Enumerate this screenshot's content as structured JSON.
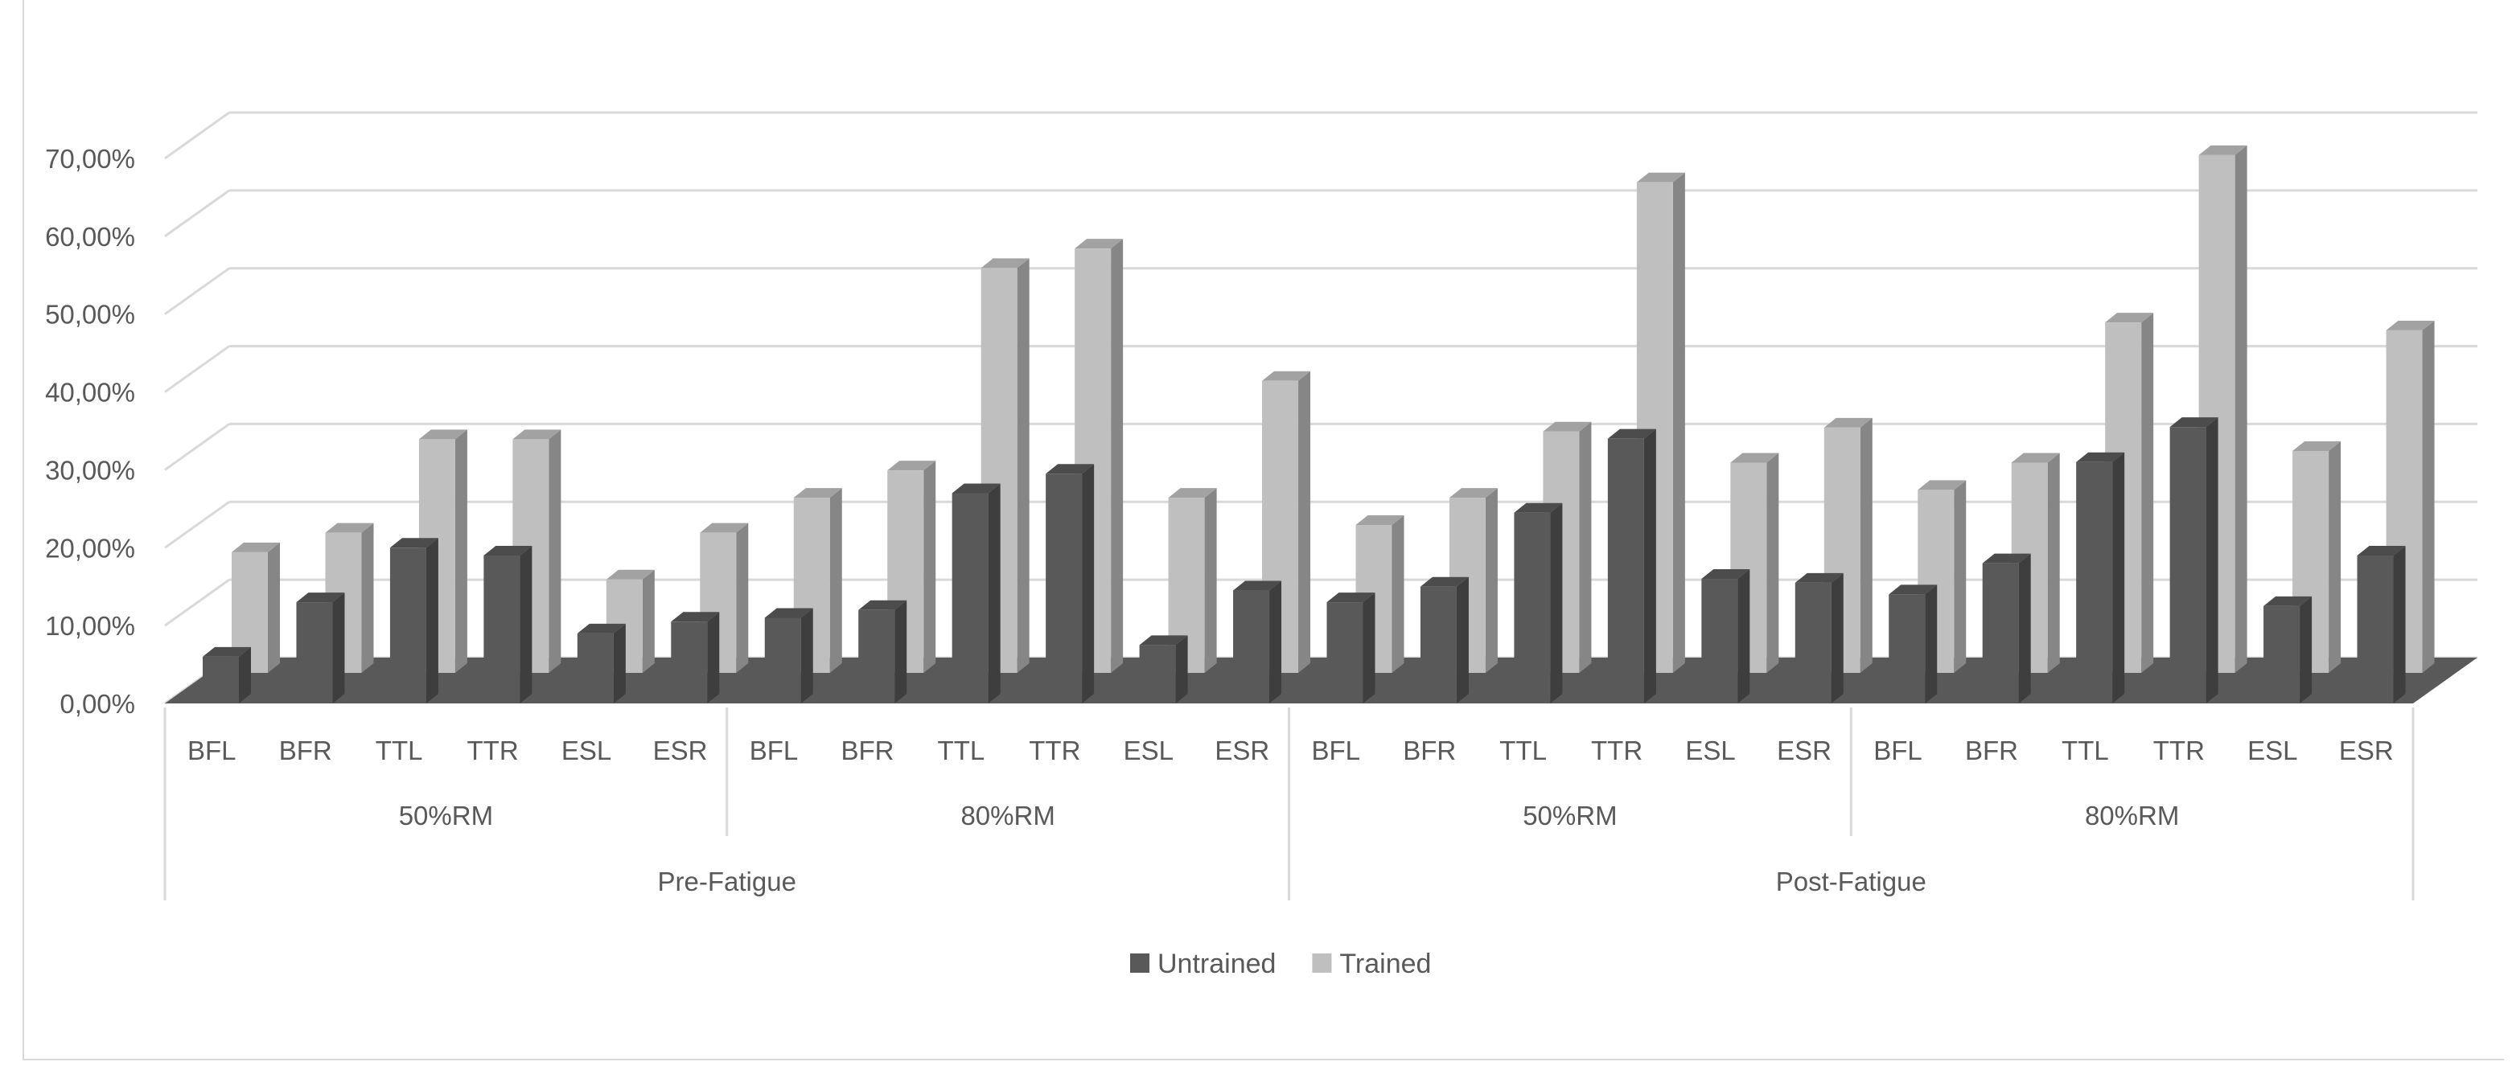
{
  "chart_data": {
    "type": "bar",
    "title": "",
    "xlabel": "",
    "ylabel": "",
    "ylim": [
      0,
      0.7
    ],
    "y_ticks": [
      "0,00%",
      "10,00%",
      "20,00%",
      "30,00%",
      "40,00%",
      "50,00%",
      "60,00%",
      "70,00%"
    ],
    "grid": true,
    "legend_position": "bottom",
    "categories": [
      "BFL",
      "BFR",
      "TTL",
      "TTR",
      "ESL",
      "ESR",
      "BFL",
      "BFR",
      "TTL",
      "TTR",
      "ESL",
      "ESR",
      "BFL",
      "BFR",
      "TTL",
      "TTR",
      "ESL",
      "ESR",
      "BFL",
      "BFR",
      "TTL",
      "TTR",
      "ESL",
      "ESR"
    ],
    "groups": [
      {
        "label": "Pre-Fatigue",
        "subgroups": [
          "50%RM",
          "80%RM"
        ]
      },
      {
        "label": "Post-Fatigue",
        "subgroups": [
          "50%RM",
          "80%RM"
        ]
      }
    ],
    "series": [
      {
        "name": "Untrained",
        "color": "#595959",
        "values": [
          0.06,
          0.13,
          0.2,
          0.19,
          0.09,
          0.105,
          0.11,
          0.12,
          0.27,
          0.295,
          0.075,
          0.145,
          0.13,
          0.15,
          0.245,
          0.34,
          0.16,
          0.155,
          0.14,
          0.18,
          0.31,
          0.355,
          0.125,
          0.19
        ]
      },
      {
        "name": "Trained",
        "color": "#bfbfbf",
        "values": [
          0.155,
          0.18,
          0.3,
          0.3,
          0.12,
          0.18,
          0.225,
          0.26,
          0.52,
          0.545,
          0.225,
          0.375,
          0.19,
          0.225,
          0.31,
          0.63,
          0.27,
          0.315,
          0.235,
          0.27,
          0.45,
          0.665,
          0.285,
          0.44
        ]
      }
    ]
  }
}
